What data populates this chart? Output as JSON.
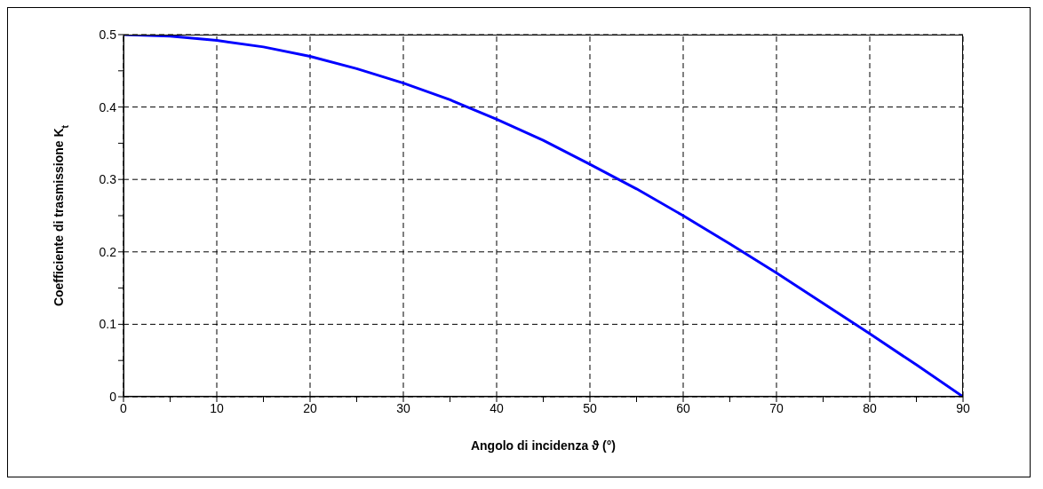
{
  "chart_data": {
    "type": "line",
    "xlabel": "Angolo di incidenza ϑ (°)",
    "ylabel": "Coefficiente di trasmissione K$_{t}$",
    "x": [
      0,
      5,
      10,
      15,
      20,
      25,
      30,
      35,
      40,
      45,
      50,
      55,
      60,
      65,
      70,
      75,
      80,
      85,
      90
    ],
    "series": [
      {
        "color": "#0000ff",
        "values": [
          0.5,
          0.498,
          0.492,
          0.483,
          0.47,
          0.453,
          0.433,
          0.41,
          0.383,
          0.354,
          0.321,
          0.287,
          0.25,
          0.211,
          0.171,
          0.129,
          0.087,
          0.044,
          0
        ]
      }
    ],
    "xlim": [
      0,
      90
    ],
    "xticks": [
      0,
      {
        "value": 5,
        "label": null
      },
      10,
      {
        "value": 15,
        "label": null
      },
      20,
      {
        "value": 25,
        "label": null
      },
      30,
      {
        "value": 35,
        "label": null
      },
      40,
      {
        "value": 45,
        "label": null
      },
      50,
      {
        "value": 55,
        "label": null
      },
      60,
      {
        "value": 65,
        "label": null
      },
      70,
      {
        "value": 75,
        "label": null
      },
      80,
      {
        "value": 85,
        "label": null
      },
      90
    ],
    "ylim": [
      0,
      0.5
    ],
    "yticks": [
      0,
      {
        "value": 0.05,
        "label": null
      },
      0.1,
      {
        "value": 0.15,
        "label": null
      },
      0.2,
      {
        "value": 0.25,
        "label": null
      },
      0.3,
      {
        "value": 0.35,
        "label": null
      },
      0.4,
      {
        "value": 0.45,
        "label": null
      },
      0.5
    ],
    "grid": true,
    "marker": "none",
    "line_style": "solid"
  }
}
